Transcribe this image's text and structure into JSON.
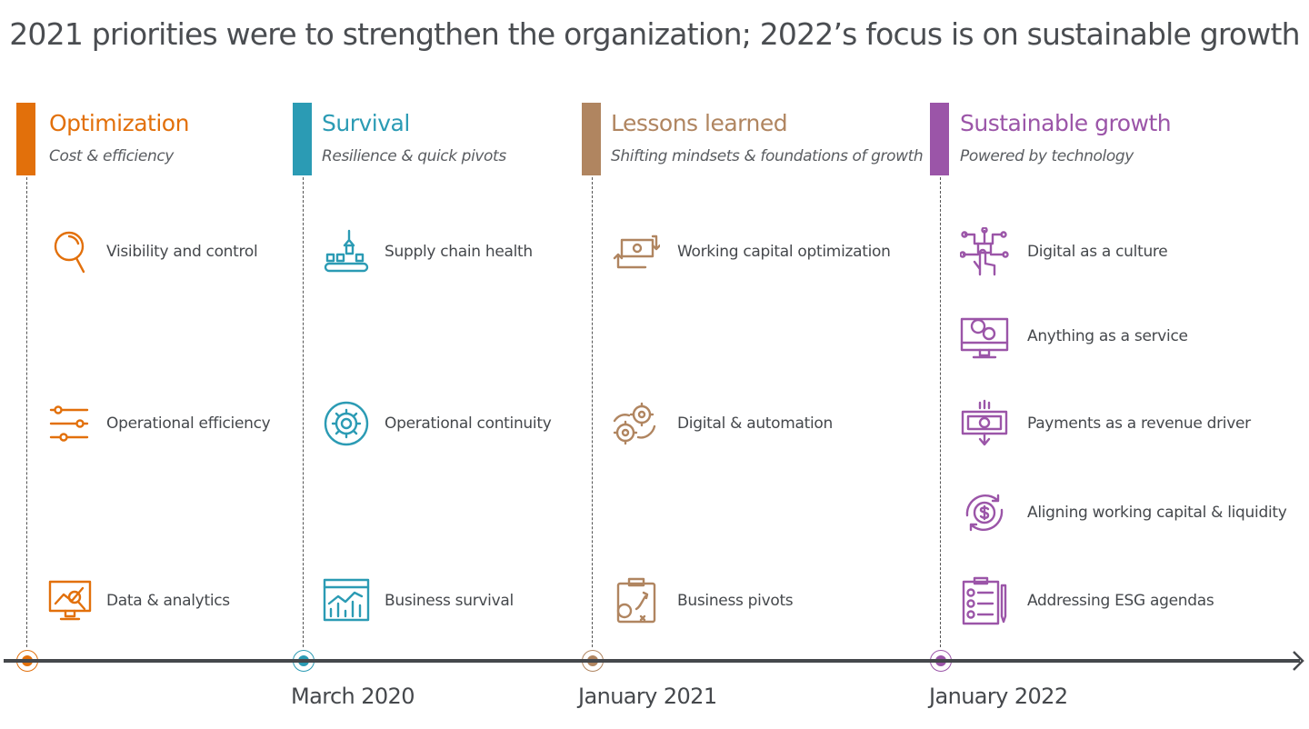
{
  "title": "2021 priorities were to strengthen the organization; 2022’s focus is on sustainable growth",
  "phases": [
    {
      "heading": "Optimization",
      "subtitle": "Cost & efficiency",
      "color": "#e2700b",
      "date": "",
      "items": [
        {
          "label": "Visibility and control",
          "icon": "magnifier-icon"
        },
        {
          "label": "Operational efficiency",
          "icon": "sliders-icon"
        },
        {
          "label": "Data & analytics",
          "icon": "analytics-monitor-icon"
        }
      ]
    },
    {
      "heading": "Survival",
      "subtitle": "Resilience & quick pivots",
      "color": "#2b9bb4",
      "date": "March 2020",
      "items": [
        {
          "label": "Supply chain health",
          "icon": "conveyor-icon"
        },
        {
          "label": "Operational continuity",
          "icon": "gear-cycle-icon"
        },
        {
          "label": "Business survival",
          "icon": "dashboard-chart-icon"
        }
      ]
    },
    {
      "heading": "Lessons learned",
      "subtitle": "Shifting mindsets & foundations of growth",
      "color": "#b08560",
      "date": "January 2021",
      "items": [
        {
          "label": "Working capital optimization",
          "icon": "cash-cycle-icon"
        },
        {
          "label": "Digital & automation",
          "icon": "gears-icon"
        },
        {
          "label": "Business pivots",
          "icon": "strategy-clipboard-icon"
        }
      ]
    },
    {
      "heading": "Sustainable growth",
      "subtitle": "Powered by technology",
      "color": "#9b55a8",
      "date": "January 2022",
      "items": [
        {
          "label": "Digital as a culture",
          "icon": "digital-hand-icon"
        },
        {
          "label": "Anything as a service",
          "icon": "monitor-gears-icon"
        },
        {
          "label": "Payments as a revenue driver",
          "icon": "payment-bill-icon"
        },
        {
          "label": "Aligning working capital & liquidity",
          "icon": "dollar-cycle-icon"
        },
        {
          "label": "Addressing ESG agendas",
          "icon": "checklist-icon"
        }
      ]
    }
  ]
}
